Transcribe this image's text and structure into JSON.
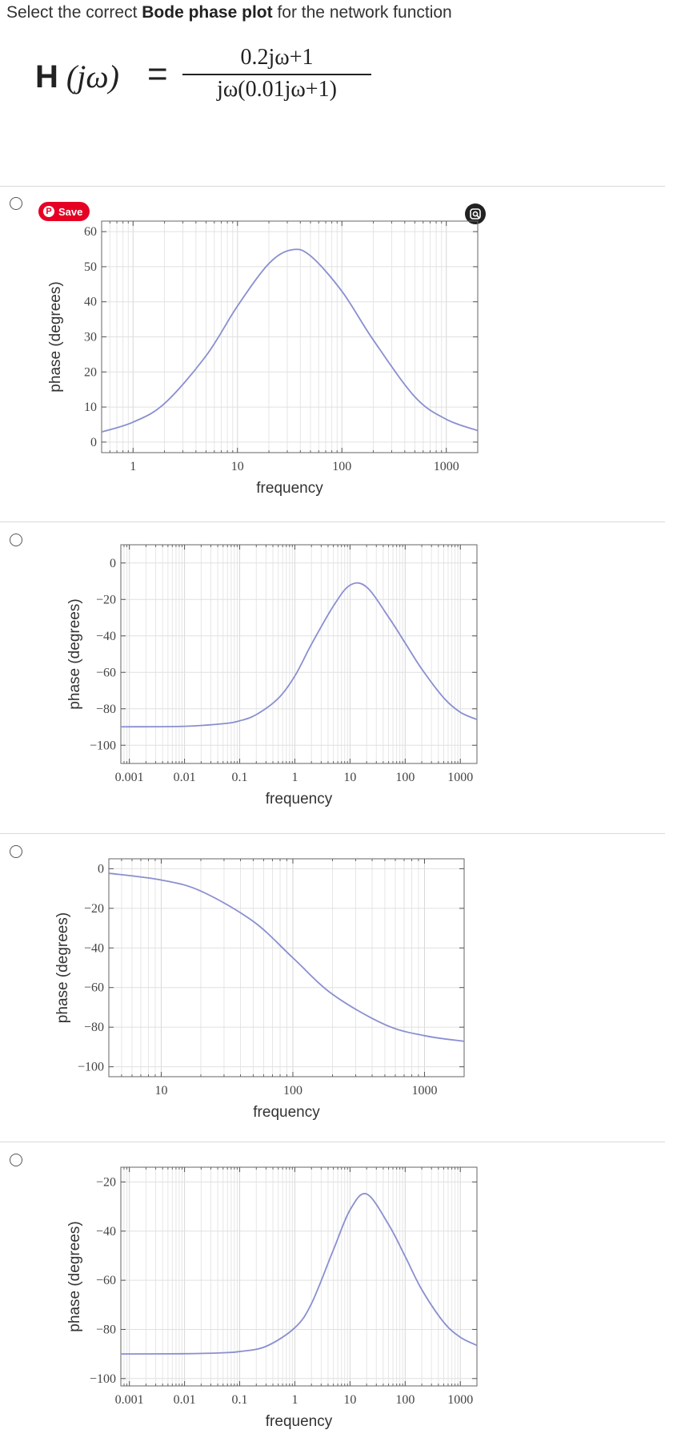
{
  "question": {
    "prefix": "Select the correct ",
    "bold": "Bode phase plot",
    "suffix": " for the network function"
  },
  "formula": {
    "lhs_H": "H",
    "lhs_arg": " (jω)",
    "equals": "=",
    "numerator": "0.2jω+1",
    "denominator": "jω(0.01jω+1)"
  },
  "save_button": {
    "label": "Save",
    "color": "#e60023"
  },
  "options": [
    {
      "chart_data": {
        "type": "line",
        "xlabel": "frequency",
        "ylabel": "phase (degrees)",
        "x_scale": "log",
        "xlim": [
          0.5,
          2000
        ],
        "ylim": [
          -3,
          63
        ],
        "xticks": [
          1,
          10,
          100,
          1000
        ],
        "xtick_labels": [
          "1",
          "10",
          "100",
          "1000"
        ],
        "yticks": [
          0,
          10,
          20,
          30,
          40,
          50,
          60
        ],
        "ytick_labels": [
          "0",
          "10",
          "20",
          "30",
          "40",
          "50",
          "60"
        ],
        "grid": true,
        "series": [
          {
            "x": [
              0.5,
              1,
              2,
              5,
              10,
              20,
              33,
              50,
              100,
              200,
              500,
              1000,
              2000
            ],
            "y": [
              2.9,
              5.7,
              11.0,
              24.6,
              38.8,
              50.9,
              54.8,
              53.1,
              43.0,
              29.1,
              12.9,
              6.5,
              3.3
            ]
          }
        ]
      }
    },
    {
      "chart_data": {
        "type": "line",
        "xlabel": "frequency",
        "ylabel": "phase (degrees)",
        "x_scale": "log",
        "xlim": [
          0.0007,
          2000
        ],
        "ylim": [
          -110,
          10
        ],
        "xticks": [
          0.001,
          0.01,
          0.1,
          1,
          10,
          100,
          1000
        ],
        "xtick_labels": [
          "0.001",
          "0.01",
          "0.1",
          "1",
          "10",
          "100",
          "1000"
        ],
        "yticks": [
          0,
          -20,
          -40,
          -60,
          -80,
          -100
        ],
        "ytick_labels": [
          "0",
          "−20",
          "−40",
          "−60",
          "−80",
          "−100"
        ],
        "grid": true,
        "series": [
          {
            "x": [
              0.0007,
              0.01,
              0.05,
              0.1,
              0.2,
              0.5,
              1,
              2,
              5,
              10,
              20,
              50,
              100,
              200,
              500,
              1000,
              2000
            ],
            "y": [
              -89.9,
              -89.6,
              -88.2,
              -86.6,
              -83.2,
              -74.3,
              -62.0,
              -44.6,
              -23.6,
              -12.2,
              -13.2,
              -29.7,
              -43.9,
              -58.2,
              -74.0,
              -81.9,
              -85.9
            ]
          }
        ]
      }
    },
    {
      "chart_data": {
        "type": "line",
        "xlabel": "frequency",
        "ylabel": "phase (degrees)",
        "x_scale": "log",
        "xlim": [
          4,
          2000
        ],
        "ylim": [
          -105,
          5
        ],
        "xticks": [
          10,
          100,
          1000
        ],
        "xtick_labels": [
          "10",
          "100",
          "1000"
        ],
        "yticks": [
          0,
          -20,
          -40,
          -60,
          -80,
          -100
        ],
        "ytick_labels": [
          "0",
          "−20",
          "−40",
          "−60",
          "−80",
          "−100"
        ],
        "grid": true,
        "series": [
          {
            "x": [
              4,
              10,
              20,
              50,
              100,
              200,
              500,
              1000,
              2000
            ],
            "y": [
              -2.3,
              -5.7,
              -11.3,
              -26.6,
              -45.0,
              -63.4,
              -78.7,
              -84.3,
              -87.1
            ]
          }
        ]
      }
    },
    {
      "chart_data": {
        "type": "line",
        "xlabel": "frequency",
        "ylabel": "phase (degrees)",
        "x_scale": "log",
        "xlim": [
          0.0007,
          2000
        ],
        "ylim": [
          -103,
          -14
        ],
        "xticks": [
          0.001,
          0.01,
          0.1,
          1,
          10,
          100,
          1000
        ],
        "xtick_labels": [
          "0.001",
          "0.01",
          "0.1",
          "1",
          "10",
          "100",
          "1000"
        ],
        "yticks": [
          -20,
          -40,
          -60,
          -80,
          -100
        ],
        "ytick_labels": [
          "−20",
          "−40",
          "−60",
          "−80",
          "−100"
        ],
        "grid": true,
        "series": [
          {
            "x": [
              0.0007,
              0.01,
              0.05,
              0.1,
              0.3,
              1,
              2,
              5,
              10,
              20,
              50,
              100,
              200,
              500,
              1000,
              2000
            ],
            "y": [
              -89.99,
              -89.9,
              -89.5,
              -89.0,
              -86.9,
              -79.3,
              -69.5,
              -47.6,
              -31.4,
              -24.9,
              -37.3,
              -50.3,
              -63.8,
              -77.1,
              -83.2,
              -86.5
            ]
          }
        ]
      }
    }
  ]
}
